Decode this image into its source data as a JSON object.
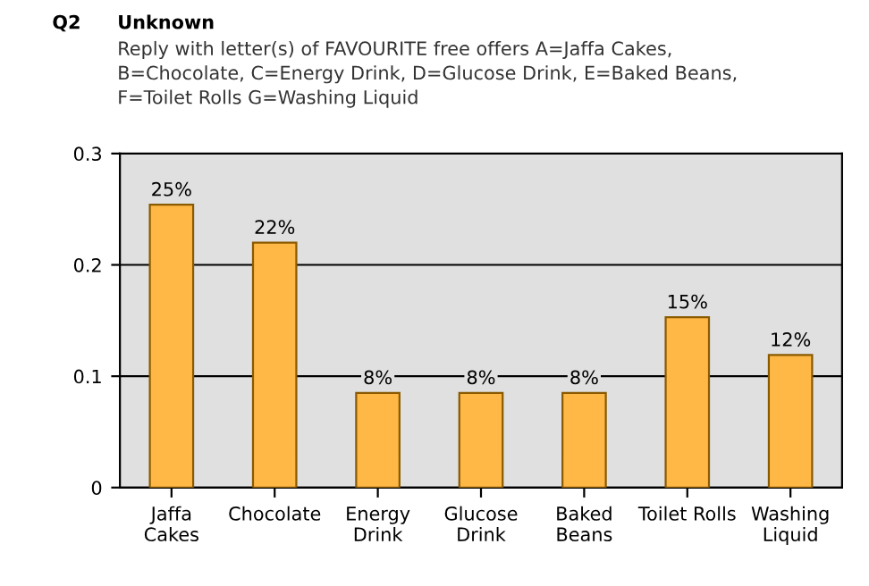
{
  "chart_data": {
    "type": "bar",
    "title": "Unknown",
    "subtitle": "Reply with letter(s) of FAVOURITE free offers A=Jaffa Cakes,\nB=Chocolate, C=Energy Drink, D=Glucose Drink, E=Baked Beans,\nF=Toilet Rolls G=Washing Liquid",
    "annotations": [
      "Q2"
    ],
    "categories": [
      "Jaffa\nCakes",
      "Chocolate",
      "Energy\nDrink",
      "Glucose\nDrink",
      "Baked\nBeans",
      "Toilet Rolls",
      "Washing\nLiquid"
    ],
    "values": [
      0.254,
      0.22,
      0.085,
      0.085,
      0.085,
      0.153,
      0.119
    ],
    "value_labels": [
      "25%",
      "22%",
      "8%",
      "8%",
      "8%",
      "15%",
      "12%"
    ],
    "color": "#ffb846",
    "ylim": [
      0,
      0.3
    ],
    "yticks": [
      0,
      0.1,
      0.2,
      0.3
    ],
    "grid": "y",
    "legend": false
  }
}
